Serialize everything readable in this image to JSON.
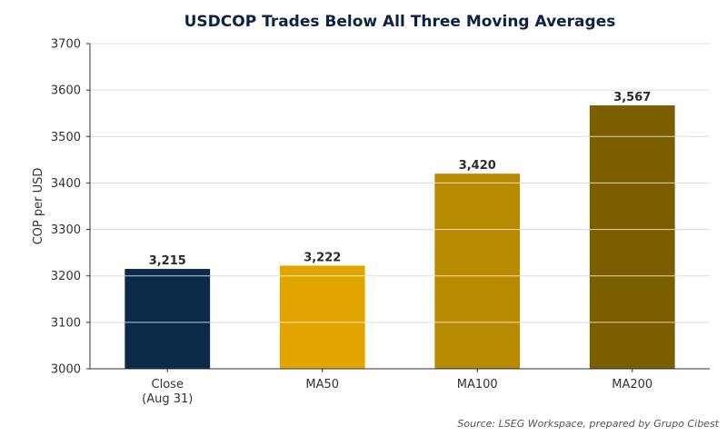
{
  "chart_data": {
    "type": "bar",
    "title": "USDCOP Trades Below All Three Moving Averages",
    "ylabel": "COP per USD",
    "xlabel": "",
    "categories": [
      [
        "Close",
        "(Aug 31)"
      ],
      [
        "MA50"
      ],
      [
        "MA100"
      ],
      [
        "MA200"
      ]
    ],
    "values": [
      3215,
      3222,
      3420,
      3567
    ],
    "value_labels": [
      "3,215",
      "3,222",
      "3,420",
      "3,567"
    ],
    "colors": [
      "#0b2a4a",
      "#e2a500",
      "#b88a00",
      "#7a5e00"
    ],
    "ylim": [
      3000,
      3700
    ],
    "yticks": [
      3000,
      3100,
      3200,
      3300,
      3400,
      3500,
      3600,
      3700
    ],
    "grid": true,
    "legend": "none"
  },
  "source_note": "Source: LSEG Workspace, prepared by Grupo Cibest"
}
